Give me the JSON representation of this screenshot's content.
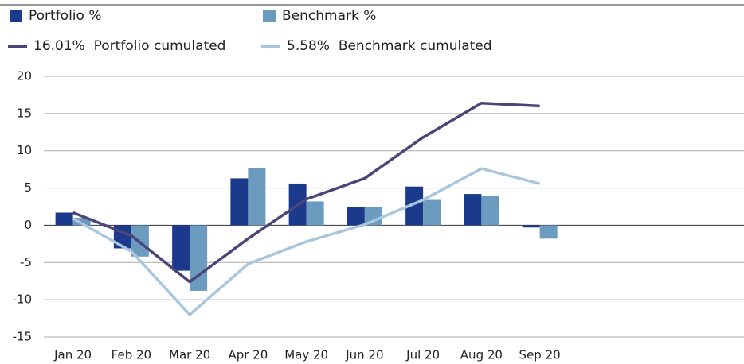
{
  "chart_data": {
    "type": "bar",
    "categories": [
      "Jan 20",
      "Feb 20",
      "Mar 20",
      "Apr 20",
      "May 20",
      "Jun 20",
      "Jul 20",
      "Aug 20",
      "Sep 20",
      null,
      null,
      null
    ],
    "series": [
      {
        "name": "Portfolio %",
        "type": "bar",
        "color": "#1c3a8c",
        "values": [
          1.7,
          -3.1,
          -6.1,
          6.3,
          5.6,
          2.4,
          5.2,
          4.2,
          -0.3,
          null,
          null,
          null
        ]
      },
      {
        "name": "Benchmark %",
        "type": "bar",
        "color": "#6b9bbf",
        "values": [
          1.0,
          -4.2,
          -8.8,
          7.7,
          3.2,
          2.4,
          3.4,
          4.0,
          -1.8,
          null,
          null,
          null
        ]
      },
      {
        "name": "16.01%  Portfolio cumulated",
        "type": "line",
        "color": "#4a4778",
        "values": [
          1.7,
          -1.4,
          -7.6,
          -1.8,
          3.5,
          6.3,
          11.8,
          16.4,
          16.01,
          null,
          null,
          null
        ]
      },
      {
        "name": "5.58%  Benchmark cumulated",
        "type": "line",
        "color": "#a9c6dd",
        "values": [
          0.9,
          -3.5,
          -12.0,
          -5.2,
          -2.2,
          0.1,
          3.4,
          7.6,
          5.58,
          null,
          null,
          null
        ]
      }
    ],
    "ylim": [
      -15,
      20
    ],
    "yticks": [
      -15,
      -10,
      -5,
      0,
      5,
      10,
      15,
      20
    ],
    "grid": true
  }
}
